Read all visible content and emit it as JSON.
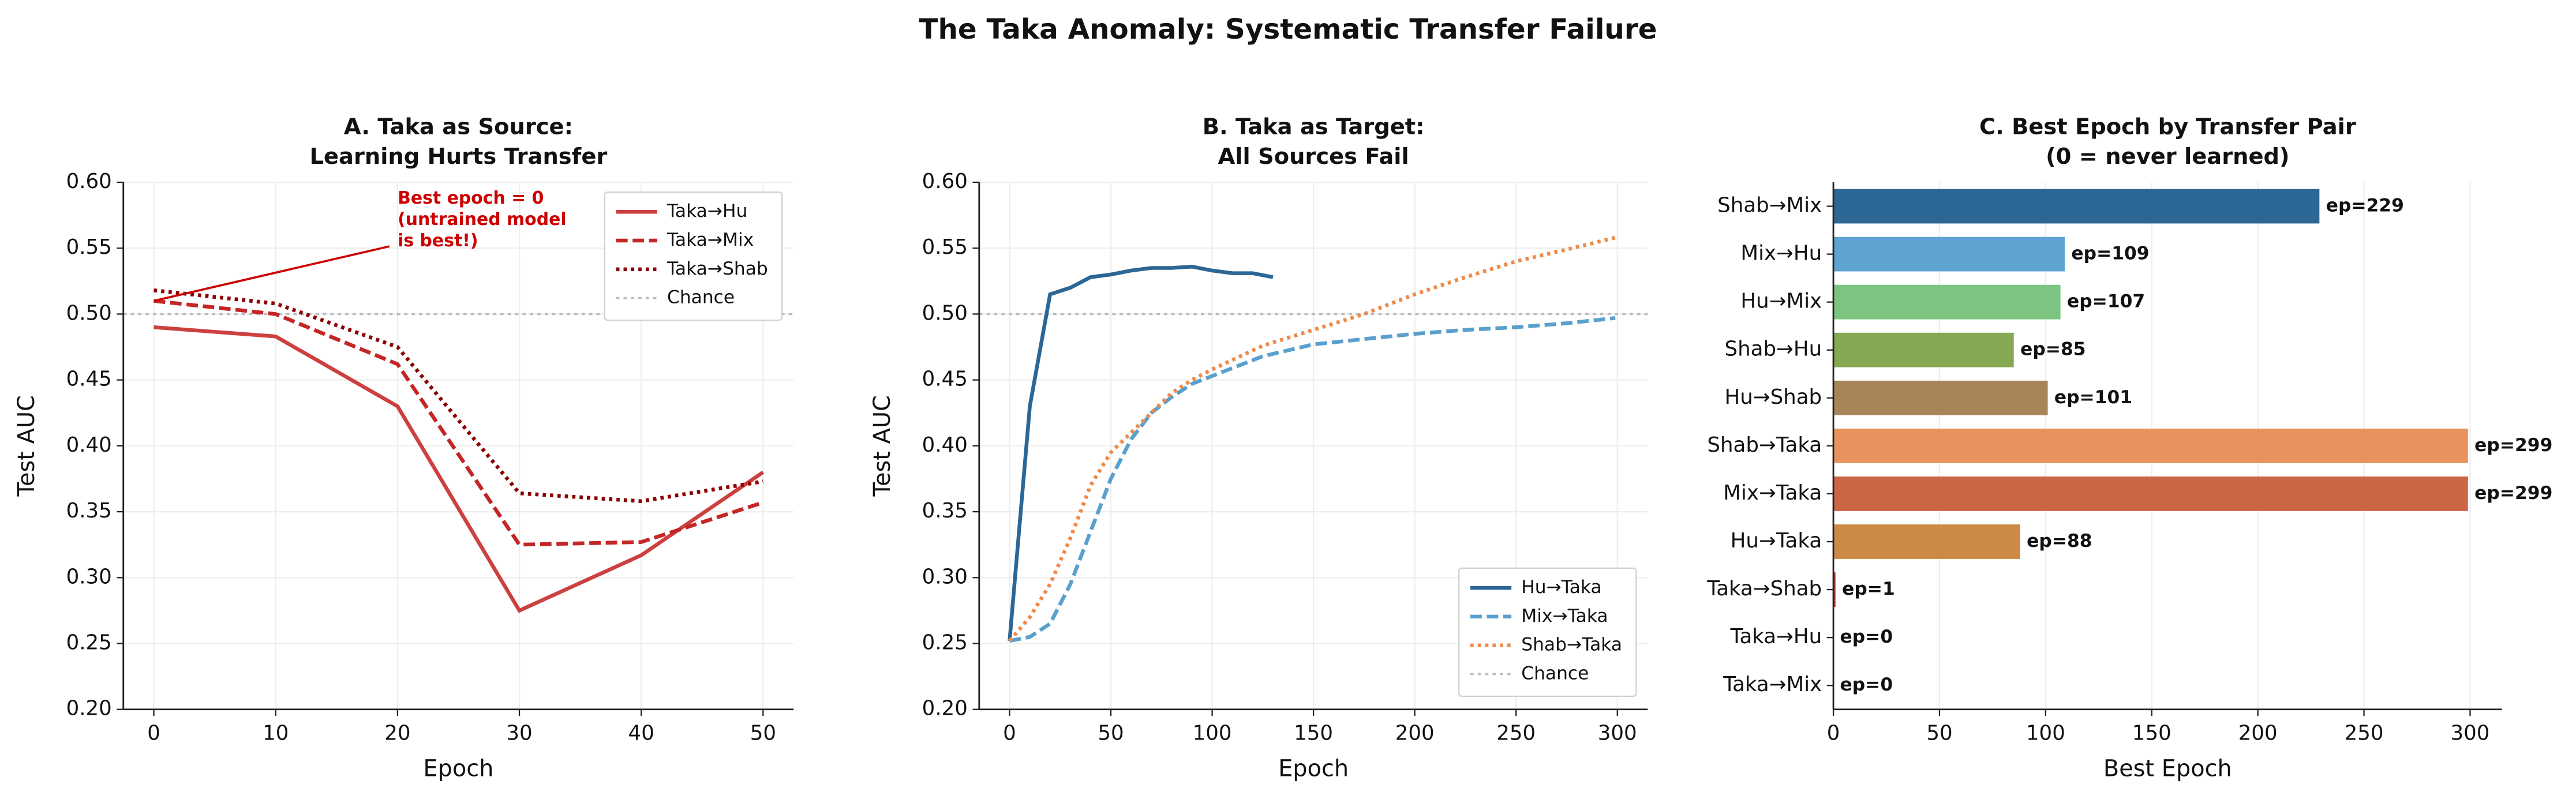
{
  "title": "The Taka Anomaly: Systematic Transfer Failure",
  "chart_data": [
    {
      "type": "line",
      "title": [
        "A. Taka as Source:",
        "Learning Hurts Transfer"
      ],
      "xlabel": "Epoch",
      "ylabel": "Test AUC",
      "xlim": [
        -2.5,
        52.5
      ],
      "xticks": [
        0,
        10,
        20,
        30,
        40,
        50
      ],
      "ylim": [
        0.2,
        0.6
      ],
      "yticks": [
        {
          "value": 0.2,
          "label": "0.20"
        },
        0.25,
        {
          "value": 0.3,
          "label": "0.30"
        },
        0.35,
        {
          "value": 0.4,
          "label": "0.40"
        },
        0.45,
        {
          "value": 0.5,
          "label": "0.50"
        },
        0.55,
        {
          "value": 0.6,
          "label": "0.60"
        }
      ],
      "grid": true,
      "legend": "upper right",
      "series": [
        {
          "name": "Taka→Hu",
          "color": "#cd4040",
          "dash": "solid",
          "x": [
            0,
            10,
            20,
            30,
            40,
            50
          ],
          "values": [
            0.49,
            0.483,
            0.43,
            0.275,
            0.317,
            0.38
          ]
        },
        {
          "name": "Taka→Mix",
          "color": "#c42626",
          "dash": "dashed",
          "x": [
            0,
            10,
            20,
            30,
            40,
            50
          ],
          "values": [
            0.51,
            0.5,
            0.462,
            0.325,
            0.327,
            0.357
          ]
        },
        {
          "name": "Taka→Shab",
          "color": "#8b0000",
          "dash": "dotted",
          "x": [
            0,
            10,
            20,
            30,
            40,
            50
          ],
          "values": [
            0.518,
            0.508,
            0.475,
            0.364,
            0.358,
            0.373
          ]
        }
      ],
      "reference": {
        "name": "Chance",
        "value": 0.5,
        "color": "#bbbbbb"
      },
      "annotation": {
        "lines": [
          "Best epoch = 0",
          "(untrained model",
          "is best!)"
        ],
        "color": "#cc0000"
      }
    },
    {
      "type": "line",
      "title": [
        "B. Taka as Target:",
        "All Sources Fail"
      ],
      "xlabel": "Epoch",
      "ylabel": "Test AUC",
      "xlim": [
        -15,
        315
      ],
      "xticks": [
        0,
        50,
        100,
        150,
        200,
        250,
        300
      ],
      "ylim": [
        0.2,
        0.6
      ],
      "yticks": [
        {
          "value": 0.2,
          "label": "0.20"
        },
        0.25,
        {
          "value": 0.3,
          "label": "0.30"
        },
        0.35,
        {
          "value": 0.4,
          "label": "0.40"
        },
        0.45,
        {
          "value": 0.5,
          "label": "0.50"
        },
        0.55,
        {
          "value": 0.6,
          "label": "0.60"
        }
      ],
      "grid": true,
      "legend": "lower right",
      "series": [
        {
          "name": "Hu→Taka",
          "color": "#2c6694",
          "dash": "solid",
          "x": [
            0,
            10,
            20,
            30,
            40,
            50,
            60,
            70,
            80,
            90,
            100,
            110,
            120,
            130
          ],
          "values": [
            0.252,
            0.43,
            0.515,
            0.52,
            0.528,
            0.53,
            0.533,
            0.535,
            0.535,
            0.536,
            0.533,
            0.531,
            0.531,
            0.528
          ]
        },
        {
          "name": "Mix→Taka",
          "color": "#5aa0cc",
          "dash": "dashed",
          "x": [
            0,
            10,
            20,
            30,
            40,
            50,
            60,
            70,
            80,
            90,
            100,
            125,
            150,
            175,
            200,
            225,
            250,
            275,
            299
          ],
          "values": [
            0.252,
            0.255,
            0.265,
            0.295,
            0.335,
            0.375,
            0.405,
            0.425,
            0.437,
            0.447,
            0.453,
            0.468,
            0.477,
            0.481,
            0.485,
            0.488,
            0.49,
            0.493,
            0.497
          ]
        },
        {
          "name": "Shab→Taka",
          "color": "#ef8a4a",
          "dash": "dotted",
          "x": [
            0,
            10,
            20,
            30,
            40,
            50,
            60,
            70,
            80,
            90,
            100,
            125,
            150,
            175,
            200,
            225,
            250,
            275,
            299
          ],
          "values": [
            0.252,
            0.27,
            0.295,
            0.33,
            0.37,
            0.395,
            0.41,
            0.425,
            0.44,
            0.45,
            0.458,
            0.476,
            0.488,
            0.5,
            0.515,
            0.528,
            0.54,
            0.549,
            0.558
          ]
        }
      ],
      "reference": {
        "name": "Chance",
        "value": 0.5,
        "color": "#bbbbbb"
      }
    },
    {
      "type": "barh",
      "title": [
        "C. Best Epoch by Transfer Pair",
        "(0 = never learned)"
      ],
      "xlabel": "Best Epoch",
      "xlim": [
        0,
        315
      ],
      "xticks": [
        0,
        50,
        100,
        150,
        200,
        250,
        300
      ],
      "grid": true,
      "categories": [
        "Shab→Mix",
        "Mix→Hu",
        "Hu→Mix",
        "Shab→Hu",
        "Hu→Shab",
        "Shab→Taka",
        "Mix→Taka",
        "Hu→Taka",
        "Taka→Shab",
        "Taka→Hu",
        "Taka→Mix"
      ],
      "values": [
        229,
        109,
        107,
        85,
        101,
        299,
        299,
        88,
        1,
        0,
        0
      ],
      "value_labels": [
        "ep=229",
        "ep=109",
        "ep=107",
        "ep=85",
        "ep=101",
        "ep=299",
        "ep=299",
        "ep=88",
        "ep=1",
        "ep=0",
        "ep=0"
      ],
      "colors": [
        "#2c6694",
        "#5fa3d3",
        "#7cc47f",
        "#86a852",
        "#a88558",
        "#e8935d",
        "#cc6545",
        "#cd8a47",
        "#b03a2e",
        "#c0392b",
        "#a93226"
      ]
    }
  ]
}
